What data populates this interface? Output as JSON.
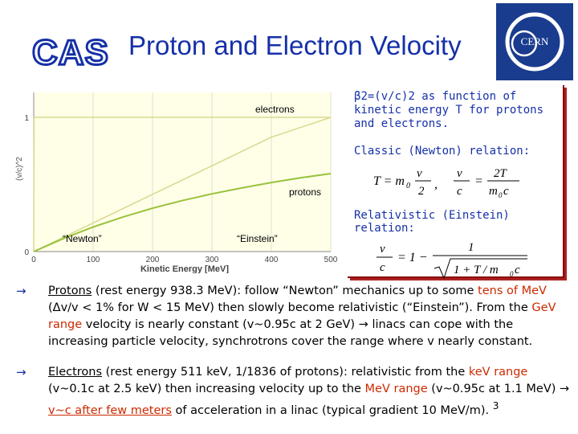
{
  "slide": {
    "title": "Proton and Electron Velocity",
    "logo_left": "CAS",
    "logo_right": "CERN"
  },
  "callouts": {
    "definition_beta": "β",
    "definition_rest": "2=(v/c)2 as function of kinetic energy T for protons and electrons.",
    "newton_heading": "Classic (Newton) relation:",
    "einstein_heading": "Relativistic (Einstein) relation:",
    "newton_formula_T": "T = m",
    "newton_formula_sub": "0",
    "newton_formula_v2": "v",
    "newton_formula_2": "2",
    "newton_formula_ratio_num": "2T",
    "newton_formula_ratio_den": "m",
    "newton_formula_c2": "c",
    "einstein_left_num": "v",
    "einstein_left_den": "c",
    "einstein_eq": "= 1 −",
    "einstein_one": "1",
    "einstein_root": "1 + T / m",
    "einstein_root_tail": "c"
  },
  "bullets": [
    {
      "parts": [
        "Protons",
        " (rest energy 938.3 MeV): follow “Newton” mechanics up to some ",
        "tens of MeV",
        " (Δv/v < 1% for W < 15 MeV) then slowly become relativistic (“Einstein”). From the ",
        "GeV range",
        " velocity is nearly constant (v~0.95c at 2 GeV) → linacs can cope with the increasing particle velocity, synchrotrons cover the range where  v  nearly constant."
      ]
    },
    {
      "parts": [
        "Electrons",
        " (rest energy 511 keV, 1/1836 of protons): relativistic from the ",
        "keV range",
        " (v~0.1c at 2.5 keV) then increasing velocity up to the ",
        "MeV range",
        " (v~0.95c at 1.1 MeV) → ",
        "v~c after few meters",
        " of acceleration in a linac (typical gradient 10 MeV/m).  "
      ]
    }
  ],
  "bullet_symbol": "→",
  "page_number": "3",
  "colors": {
    "title": "#1530a8",
    "highlight": "#cc2a00",
    "electron_line": "#d8d890",
    "proton_line": "#99c23a",
    "plot_bg": "#ffffe8"
  },
  "chart_data": {
    "type": "line",
    "xlabel": "Kinetic Energy [MeV]",
    "ylabel": "(v/c)^2",
    "xticks": [
      "0",
      "100",
      "200",
      "300",
      "400",
      "500"
    ],
    "yticks": [
      "0",
      "1"
    ],
    "xlim": [
      0,
      500
    ],
    "ylim": [
      0,
      1
    ],
    "annotations": [
      "electrons",
      "protons",
      "“Newton”",
      "“Einstein”"
    ],
    "series": [
      {
        "name": "electrons",
        "x": [
          0,
          1,
          2,
          5,
          10,
          50,
          100,
          500
        ],
        "values": [
          0,
          0.89,
          0.97,
          0.99,
          1.0,
          1.0,
          1.0,
          1.0
        ]
      },
      {
        "name": "Newton",
        "x": [
          0,
          100,
          200,
          300,
          400,
          500
        ],
        "values": [
          0,
          0.213,
          0.426,
          0.639,
          0.852,
          1.0
        ]
      },
      {
        "name": "protons",
        "x": [
          0,
          50,
          100,
          150,
          200,
          250,
          300,
          350,
          400,
          450,
          500
        ],
        "values": [
          0,
          0.097,
          0.183,
          0.257,
          0.323,
          0.38,
          0.43,
          0.474,
          0.514,
          0.55,
          0.581
        ]
      }
    ]
  }
}
